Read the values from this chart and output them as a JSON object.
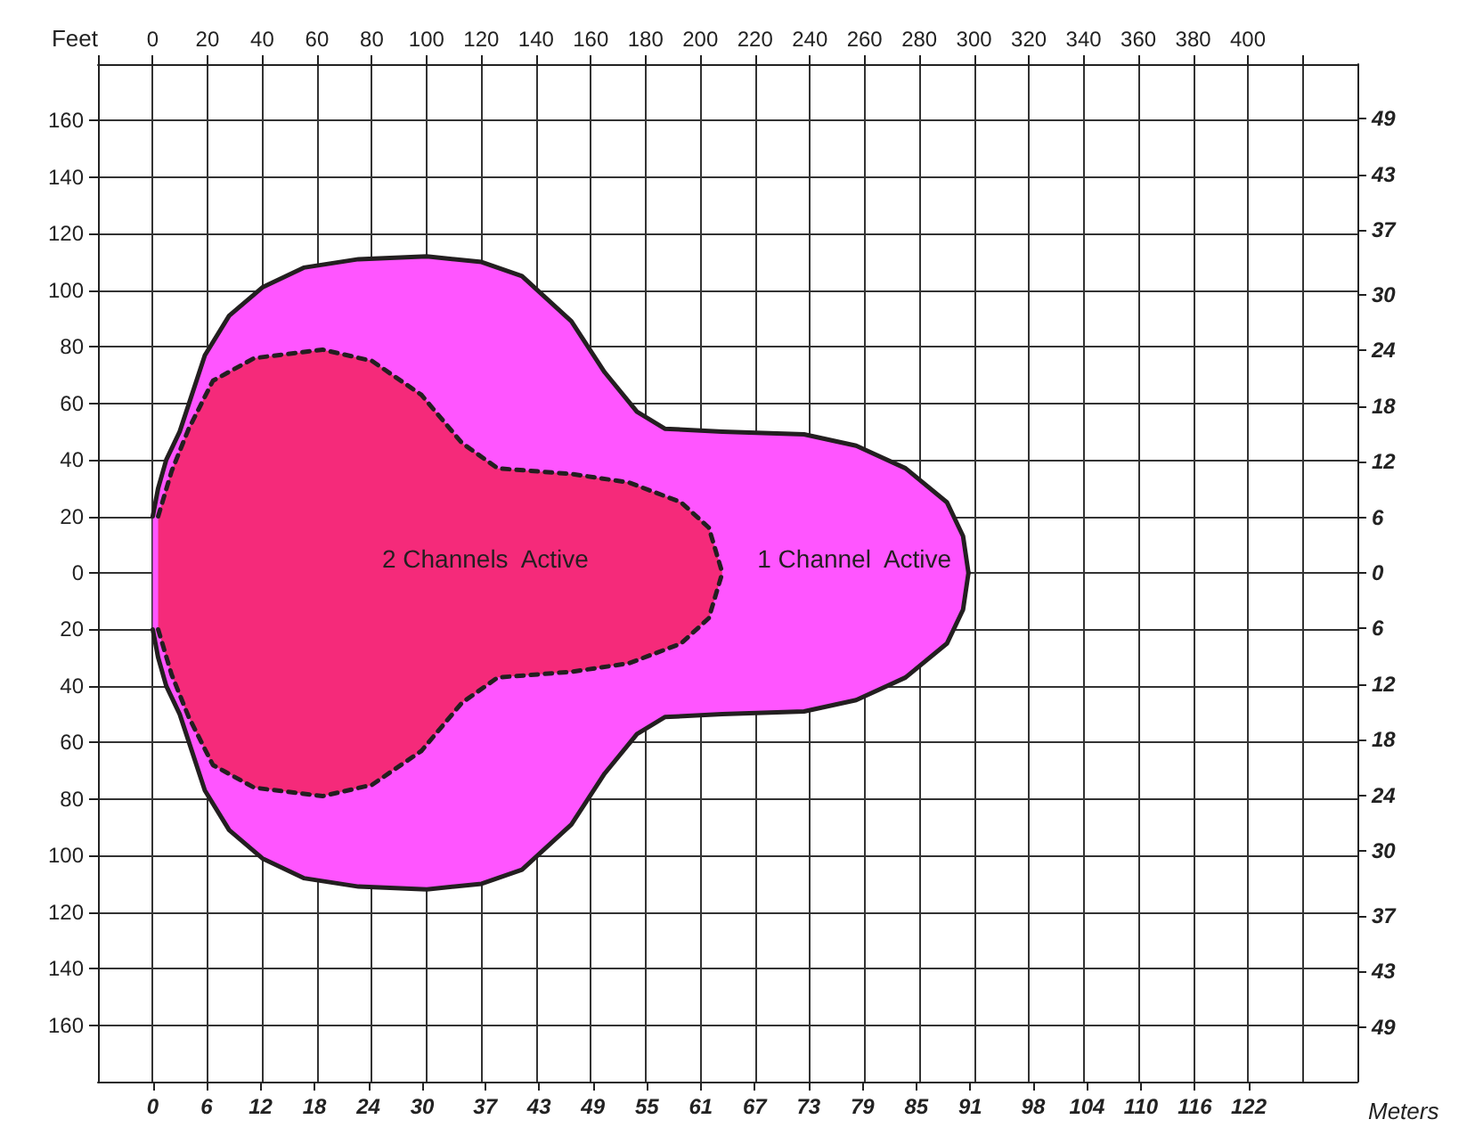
{
  "chart_data": {
    "type": "area",
    "xlabel": "Meters",
    "ylabel": "Feet",
    "xlim": [
      -6.1,
      134.1
    ],
    "xticks": [
      0,
      6,
      12,
      18,
      24,
      30,
      37,
      43,
      49,
      55,
      61,
      67,
      73,
      79,
      85,
      91,
      98,
      104,
      110,
      116,
      122
    ],
    "x2lim": [
      -20,
      440
    ],
    "x2ticks": [
      {
        "value": -20,
        "label": null
      },
      0,
      20,
      40,
      60,
      80,
      100,
      120,
      140,
      160,
      180,
      200,
      220,
      240,
      260,
      280,
      300,
      320,
      340,
      360,
      380,
      400,
      {
        "value": 420,
        "label": null
      }
    ],
    "ylim": [
      -180,
      180
    ],
    "yticks": [
      {
        "value": -160,
        "label": "160"
      },
      {
        "value": -140,
        "label": "140"
      },
      {
        "value": -120,
        "label": "120"
      },
      {
        "value": -100,
        "label": "100"
      },
      {
        "value": -80,
        "label": "80"
      },
      {
        "value": -60,
        "label": "60"
      },
      {
        "value": -40,
        "label": "40"
      },
      {
        "value": -20,
        "label": "20"
      },
      0,
      20,
      40,
      60,
      80,
      100,
      120,
      140,
      160
    ],
    "y2lim": [
      -54.9,
      54.9
    ],
    "y2ticks": [
      {
        "value": -49,
        "label": "49"
      },
      {
        "value": -43,
        "label": "43"
      },
      {
        "value": -37,
        "label": "37"
      },
      {
        "value": -30,
        "label": "30"
      },
      {
        "value": -24,
        "label": "24"
      },
      {
        "value": -18,
        "label": "18"
      },
      {
        "value": -12,
        "label": "12"
      },
      {
        "value": -6,
        "label": "6"
      },
      0,
      6,
      12,
      18,
      24,
      30,
      37,
      43,
      49
    ],
    "grid": true,
    "series": [
      {
        "color": "#ff55ff",
        "line_style": "solid",
        "x": [
          0,
          0.6,
          1.5,
          3.0,
          5.8,
          8.5,
          12.2,
          16.8,
          22.9,
          30.5,
          36.6,
          41.1,
          46.6,
          50.3,
          53.9,
          57.0,
          63.4,
          72.5,
          78.3,
          83.8,
          88.4,
          90.2,
          90.8
        ],
        "values": [
          20,
          30,
          40,
          50,
          77,
          91,
          101,
          108,
          111,
          112,
          110,
          105,
          89,
          71,
          57,
          51,
          50,
          49,
          45,
          37,
          25,
          13,
          0
        ]
      },
      {
        "color": "#ff55ff",
        "line_style": "solid",
        "x": [
          0,
          0.6,
          1.5,
          3.0,
          5.8,
          8.5,
          12.2,
          16.8,
          22.9,
          30.5,
          36.6,
          41.1,
          46.6,
          50.3,
          53.9,
          57.0,
          63.4,
          72.5,
          78.3,
          83.8,
          88.4,
          90.2,
          90.8
        ],
        "values": [
          -20,
          -30,
          -40,
          -50,
          -77,
          -91,
          -101,
          -108,
          -111,
          -112,
          -110,
          -105,
          -89,
          -71,
          -57,
          -51,
          -50,
          -49,
          -45,
          -37,
          -25,
          -13,
          0
        ]
      },
      {
        "color": "#f52a7a",
        "line_style": "dashed",
        "x": [
          0.6,
          2.1,
          4.0,
          6.7,
          11.3,
          18.9,
          24.4,
          29.9,
          34.4,
          38.4,
          46.6,
          53.0,
          58.8,
          61.9,
          63.4
        ],
        "values": [
          20,
          36,
          51,
          68,
          76,
          79,
          75,
          63,
          46,
          37,
          35,
          32,
          25,
          16,
          0
        ]
      },
      {
        "color": "#f52a7a",
        "line_style": "dashed",
        "x": [
          0.6,
          2.1,
          4.0,
          6.7,
          11.3,
          18.9,
          24.4,
          29.9,
          34.4,
          38.4,
          46.6,
          53.0,
          58.8,
          61.9,
          63.4
        ],
        "values": [
          -20,
          -36,
          -51,
          -68,
          -76,
          -79,
          -75,
          -63,
          -46,
          -37,
          -35,
          -32,
          -25,
          -16,
          0
        ]
      }
    ],
    "annotations": [
      "2 Channels  Active",
      "1 Channel  Active"
    ]
  }
}
